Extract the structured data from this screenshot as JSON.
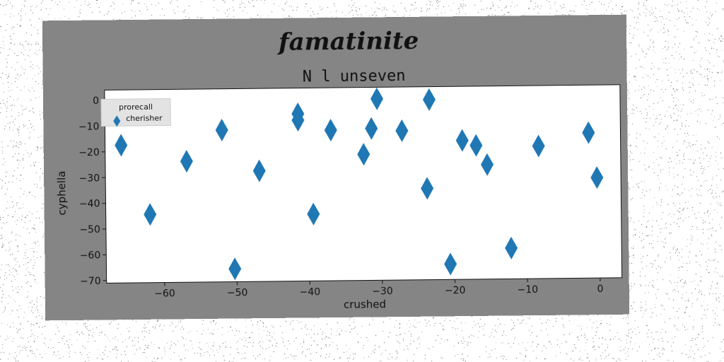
{
  "chart_data": {
    "type": "scatter",
    "suptitle": "famatinite",
    "title": "N l unseven",
    "xlabel": "crushed",
    "ylabel": "cyphella",
    "xlim": [
      -68,
      3
    ],
    "ylim": [
      -71,
      4
    ],
    "xticks": [
      -60,
      -50,
      -40,
      -30,
      -20,
      -10,
      0
    ],
    "yticks": [
      0,
      -10,
      -20,
      -30,
      -40,
      -50,
      -60,
      -70
    ],
    "xtick_labels": [
      "−60",
      "−50",
      "−40",
      "−30",
      "−20",
      "−10",
      "0"
    ],
    "ytick_labels": [
      "0",
      "−10",
      "−20",
      "−30",
      "−40",
      "−50",
      "−60",
      "−70"
    ],
    "legend": {
      "title": "prorecall",
      "placement": "top-left"
    },
    "marker": "diamond",
    "series": [
      {
        "name": "cherisher",
        "color": "#1f77b4",
        "points": [
          [
            -65.8,
            -17.5
          ],
          [
            -61.9,
            -44.5
          ],
          [
            -56.8,
            -24
          ],
          [
            -51.9,
            -12
          ],
          [
            -50.3,
            -66
          ],
          [
            -46.8,
            -28
          ],
          [
            -41.4,
            -6
          ],
          [
            -41.4,
            -8.5
          ],
          [
            -39.4,
            -45
          ],
          [
            -36.9,
            -12.5
          ],
          [
            -32.4,
            -22
          ],
          [
            -31.3,
            -12
          ],
          [
            -30.5,
            -0.5
          ],
          [
            -27.1,
            -13
          ],
          [
            -23.7,
            -35.5
          ],
          [
            -23.3,
            -1
          ],
          [
            -20.6,
            -65
          ],
          [
            -18.8,
            -17
          ],
          [
            -16.9,
            -19
          ],
          [
            -15.4,
            -26.5
          ],
          [
            -12.2,
            -59
          ],
          [
            -8.3,
            -19.5
          ],
          [
            -1.4,
            -14.5
          ],
          [
            -0.3,
            -32
          ]
        ]
      }
    ]
  }
}
